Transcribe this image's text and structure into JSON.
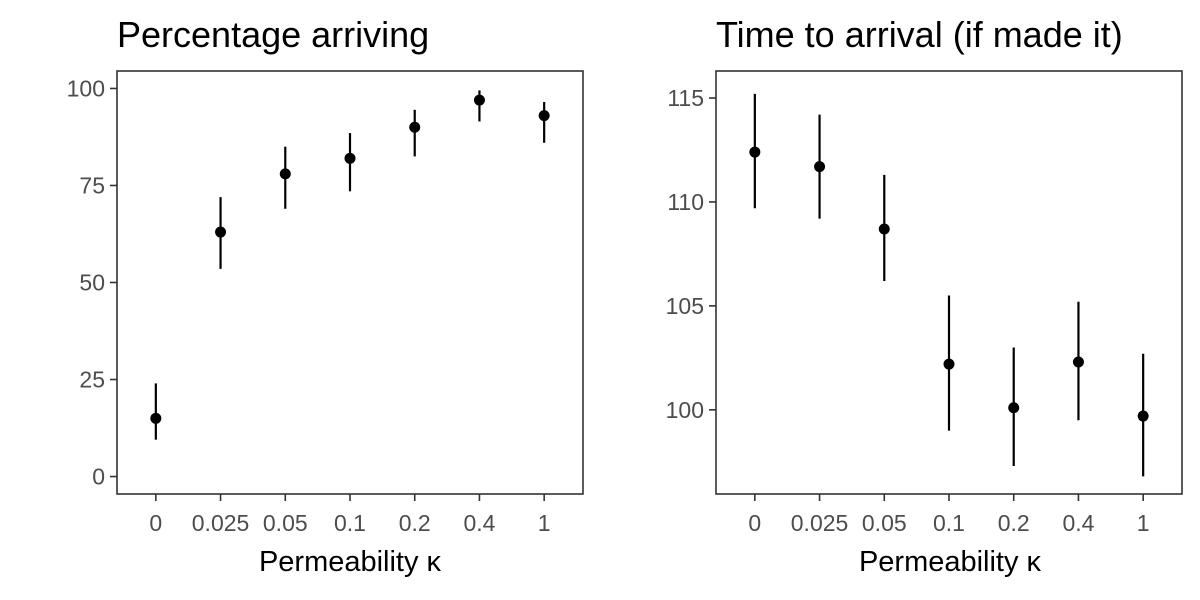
{
  "chart_data": [
    {
      "type": "scatter",
      "title": "Percentage arriving",
      "xlabel": "Permeability κ",
      "ylabel": "",
      "categories": [
        "0",
        "0.025",
        "0.05",
        "0.1",
        "0.2",
        "0.4",
        "1"
      ],
      "values": [
        15,
        63,
        78,
        82,
        90,
        97,
        93
      ],
      "lower": [
        9.5,
        53.5,
        69,
        73.5,
        82.5,
        91.5,
        86
      ],
      "upper": [
        24,
        72,
        85,
        88.5,
        94.5,
        99.5,
        96.5
      ],
      "ylim": [
        -4.5,
        104.5
      ],
      "yticks": [
        0,
        25,
        50,
        75,
        100
      ],
      "ytick_labels": [
        "0",
        "25",
        "50",
        "75",
        "100"
      ],
      "error_bars": true,
      "grid": false,
      "legend": "none"
    },
    {
      "type": "scatter",
      "title": "Time to arrival (if made it)",
      "xlabel": "Permeability κ",
      "ylabel": "",
      "categories": [
        "0",
        "0.025",
        "0.05",
        "0.1",
        "0.2",
        "0.4",
        "1"
      ],
      "values": [
        112.4,
        111.7,
        108.7,
        102.2,
        100.1,
        102.3,
        99.7
      ],
      "lower": [
        109.7,
        109.2,
        106.2,
        99.0,
        97.3,
        99.5,
        96.8
      ],
      "upper": [
        115.2,
        114.2,
        111.3,
        105.5,
        103.0,
        105.2,
        102.7
      ],
      "ylim": [
        95.95,
        116.3
      ],
      "yticks": [
        100,
        105,
        110,
        115
      ],
      "ytick_labels": [
        "100",
        "105",
        "110",
        "115"
      ],
      "error_bars": true,
      "grid": false,
      "legend": "none"
    }
  ]
}
